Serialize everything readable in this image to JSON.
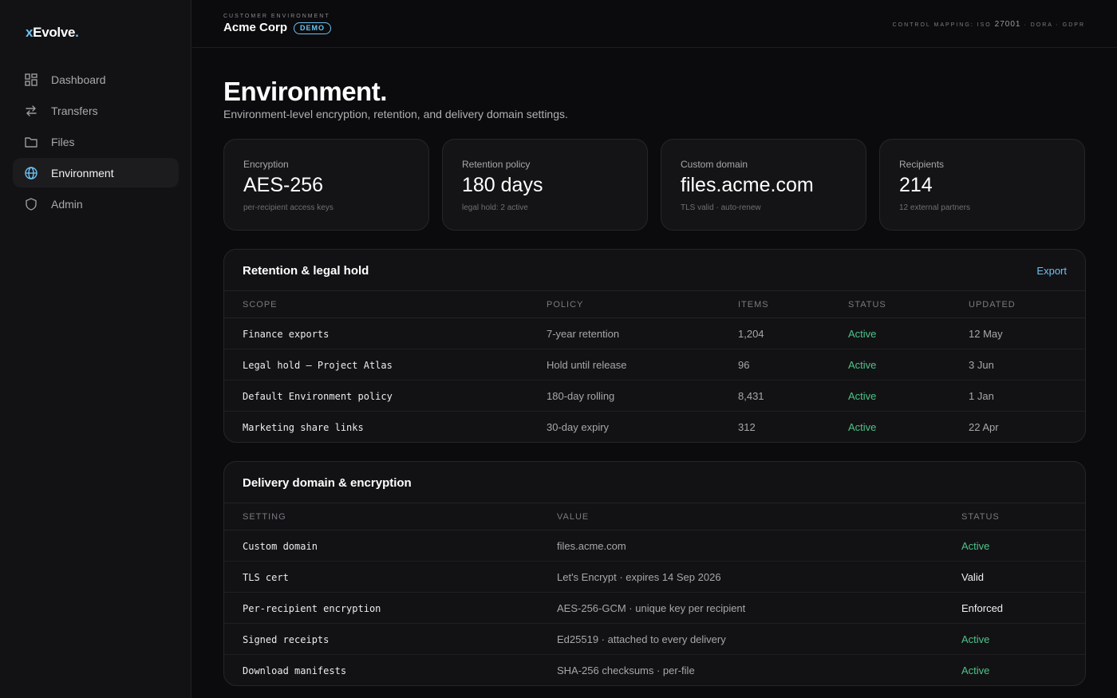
{
  "brand": {
    "x": "x",
    "name": "Evolve",
    "dot": "."
  },
  "sidebar": {
    "items": [
      {
        "label": "Dashboard",
        "icon": "dashboard-icon",
        "active": false
      },
      {
        "label": "Transfers",
        "icon": "transfer-icon",
        "active": false
      },
      {
        "label": "Files",
        "icon": "folder-icon",
        "active": false
      },
      {
        "label": "Environment",
        "icon": "globe-icon",
        "active": true
      },
      {
        "label": "Admin",
        "icon": "shield-icon",
        "active": false
      }
    ]
  },
  "header": {
    "env_label": "CUSTOMER ENVIRONMENT",
    "env_name": "Acme Corp",
    "badge": "DEMO",
    "control_prefix": "CONTROL MAPPING: ISO",
    "control_num": "27001",
    "control_suffix": "· DORA · GDPR"
  },
  "page": {
    "title": "Environment.",
    "subtitle": "Environment-level encryption, retention, and delivery domain settings."
  },
  "stats": [
    {
      "label": "Encryption",
      "value": "AES-256",
      "note": "per-recipient access keys"
    },
    {
      "label": "Retention policy",
      "value": "180 days",
      "note": "legal hold: 2 active"
    },
    {
      "label": "Custom domain",
      "value": "files.acme.com",
      "note": "TLS valid · auto-renew"
    },
    {
      "label": "Recipients",
      "value": "214",
      "note": "12 external partners"
    }
  ],
  "retention": {
    "title": "Retention & legal hold",
    "action": "Export",
    "columns": [
      "SCOPE",
      "POLICY",
      "ITEMS",
      "STATUS",
      "UPDATED"
    ],
    "rows": [
      {
        "scope": "Finance exports",
        "policy": "7-year retention",
        "items": "1,204",
        "status": "Active",
        "updated": "12 May"
      },
      {
        "scope": "Legal hold — Project Atlas",
        "policy": "Hold until release",
        "items": "96",
        "status": "Active",
        "updated": "3 Jun"
      },
      {
        "scope": "Default Environment policy",
        "policy": "180-day rolling",
        "items": "8,431",
        "status": "Active",
        "updated": "1 Jan"
      },
      {
        "scope": "Marketing share links",
        "policy": "30-day expiry",
        "items": "312",
        "status": "Active",
        "updated": "22 Apr"
      }
    ]
  },
  "delivery": {
    "title": "Delivery domain & encryption",
    "columns": [
      "SETTING",
      "VALUE",
      "STATUS"
    ],
    "rows": [
      {
        "setting": "Custom domain",
        "value": "files.acme.com",
        "status": "Active"
      },
      {
        "setting": "TLS cert",
        "value": "Let's Encrypt · expires 14 Sep 2026",
        "status": "Valid"
      },
      {
        "setting": "Per-recipient encryption",
        "value": "AES-256-GCM · unique key per recipient",
        "status": "Enforced"
      },
      {
        "setting": "Signed receipts",
        "value": "Ed25519 · attached to every delivery",
        "status": "Active"
      },
      {
        "setting": "Download manifests",
        "value": "SHA-256 checksums · per-file",
        "status": "Active"
      }
    ]
  },
  "colors": {
    "accent": "#6ec1f2",
    "active_status": "#4fc28a",
    "background": "#0b0b0d"
  }
}
